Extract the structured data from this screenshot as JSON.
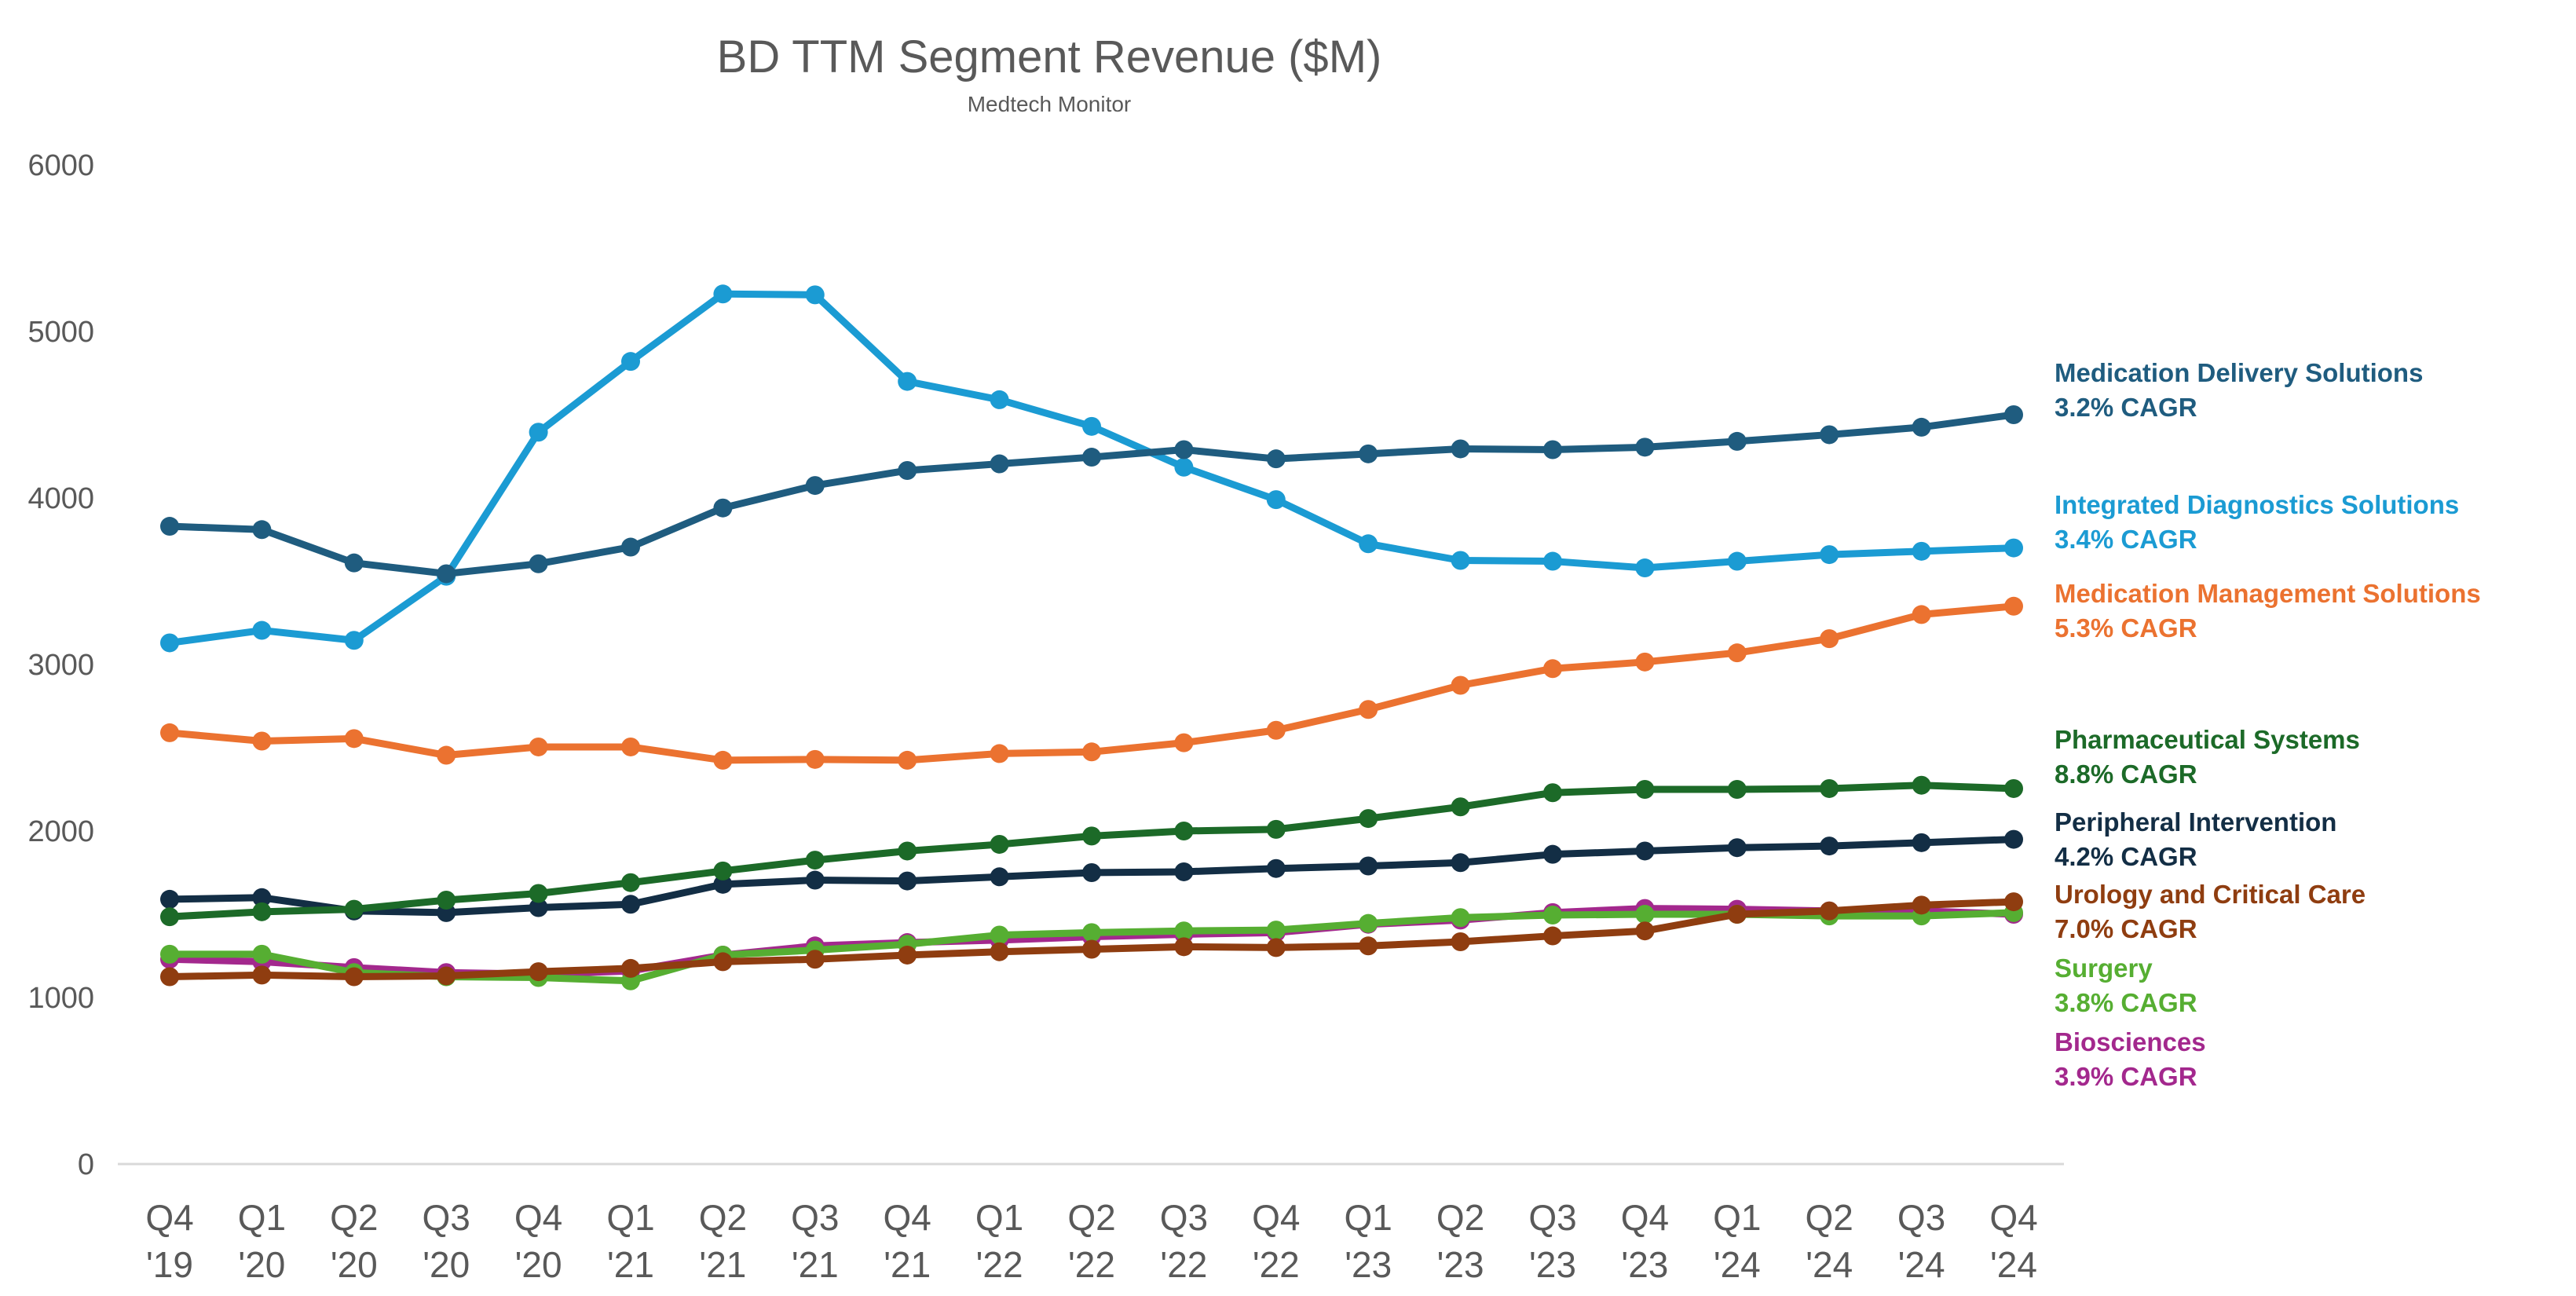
{
  "chart_data": {
    "type": "line",
    "title": "BD TTM Segment Revenue ($M)",
    "subtitle": "Medtech Monitor",
    "xlabel": "",
    "ylabel": "",
    "ylim": [
      0,
      6000
    ],
    "yticks": [
      "0",
      "1000",
      "2000",
      "3000",
      "4000",
      "5000",
      "6000"
    ],
    "categories": [
      [
        "Q4",
        "'19"
      ],
      [
        "Q1",
        "'20"
      ],
      [
        "Q2",
        "'20"
      ],
      [
        "Q3",
        "'20"
      ],
      [
        "Q4",
        "'20"
      ],
      [
        "Q1",
        "'21"
      ],
      [
        "Q2",
        "'21"
      ],
      [
        "Q3",
        "'21"
      ],
      [
        "Q4",
        "'21"
      ],
      [
        "Q1",
        "'22"
      ],
      [
        "Q2",
        "'22"
      ],
      [
        "Q3",
        "'22"
      ],
      [
        "Q4",
        "'22"
      ],
      [
        "Q1",
        "'23"
      ],
      [
        "Q2",
        "'23"
      ],
      [
        "Q3",
        "'23"
      ],
      [
        "Q4",
        "'23"
      ],
      [
        "Q1",
        "'24"
      ],
      [
        "Q2",
        "'24"
      ],
      [
        "Q3",
        "'24"
      ],
      [
        "Q4",
        "'24"
      ]
    ],
    "grid": false,
    "legend": "right",
    "series": [
      {
        "name": "Medication Delivery Solutions",
        "cagr": "3.2% CAGR",
        "color": "#1F5C7F",
        "values": [
          3830,
          3810,
          3610,
          3545,
          3605,
          3705,
          3940,
          4075,
          4165,
          4205,
          4245,
          4290,
          4235,
          4265,
          4295,
          4290,
          4305,
          4340,
          4380,
          4425,
          4500
        ]
      },
      {
        "name": "Integrated Diagnostics Solutions",
        "cagr": "3.4% CAGR",
        "color": "#1B9BD3",
        "values": [
          3130,
          3205,
          3145,
          3530,
          4395,
          4820,
          5225,
          5220,
          4700,
          4590,
          4430,
          4185,
          3990,
          3725,
          3625,
          3620,
          3580,
          3620,
          3660,
          3680,
          3700
        ]
      },
      {
        "name": "Medication Management Solutions",
        "cagr": "5.3% CAGR",
        "color": "#EB7230",
        "values": [
          2590,
          2540,
          2555,
          2455,
          2505,
          2505,
          2425,
          2430,
          2425,
          2465,
          2475,
          2530,
          2605,
          2730,
          2875,
          2975,
          3015,
          3070,
          3155,
          3300,
          3350
        ]
      },
      {
        "name": "Pharmaceutical Systems",
        "cagr": "8.8% CAGR",
        "color": "#1C6A28",
        "values": [
          1485,
          1515,
          1530,
          1585,
          1625,
          1690,
          1760,
          1825,
          1880,
          1920,
          1970,
          2000,
          2010,
          2075,
          2145,
          2230,
          2250,
          2250,
          2255,
          2275,
          2255
        ]
      },
      {
        "name": "Peripheral Intervention",
        "cagr": "4.2% CAGR",
        "color": "#132E45",
        "values": [
          1590,
          1600,
          1520,
          1510,
          1540,
          1560,
          1680,
          1705,
          1700,
          1725,
          1750,
          1755,
          1775,
          1790,
          1810,
          1860,
          1880,
          1900,
          1910,
          1930,
          1950
        ]
      },
      {
        "name": "Urology and Critical Care",
        "cagr": "7.0% CAGR",
        "color": "#8F3D10",
        "values": [
          1125,
          1135,
          1125,
          1130,
          1155,
          1175,
          1215,
          1230,
          1255,
          1275,
          1290,
          1305,
          1300,
          1310,
          1335,
          1370,
          1400,
          1500,
          1520,
          1555,
          1575
        ]
      },
      {
        "name": "Surgery",
        "cagr": "3.8% CAGR",
        "color": "#56AE32",
        "values": [
          1260,
          1260,
          1150,
          1125,
          1120,
          1100,
          1255,
          1285,
          1320,
          1375,
          1390,
          1400,
          1405,
          1445,
          1480,
          1495,
          1500,
          1500,
          1490,
          1490,
          1510
        ]
      },
      {
        "name": "Biosciences",
        "cagr": "3.9% CAGR",
        "color": "#A3288D",
        "values": [
          1230,
          1215,
          1180,
          1150,
          1140,
          1160,
          1255,
          1310,
          1330,
          1345,
          1365,
          1380,
          1390,
          1440,
          1465,
          1510,
          1535,
          1530,
          1520,
          1520,
          1500
        ]
      }
    ]
  }
}
